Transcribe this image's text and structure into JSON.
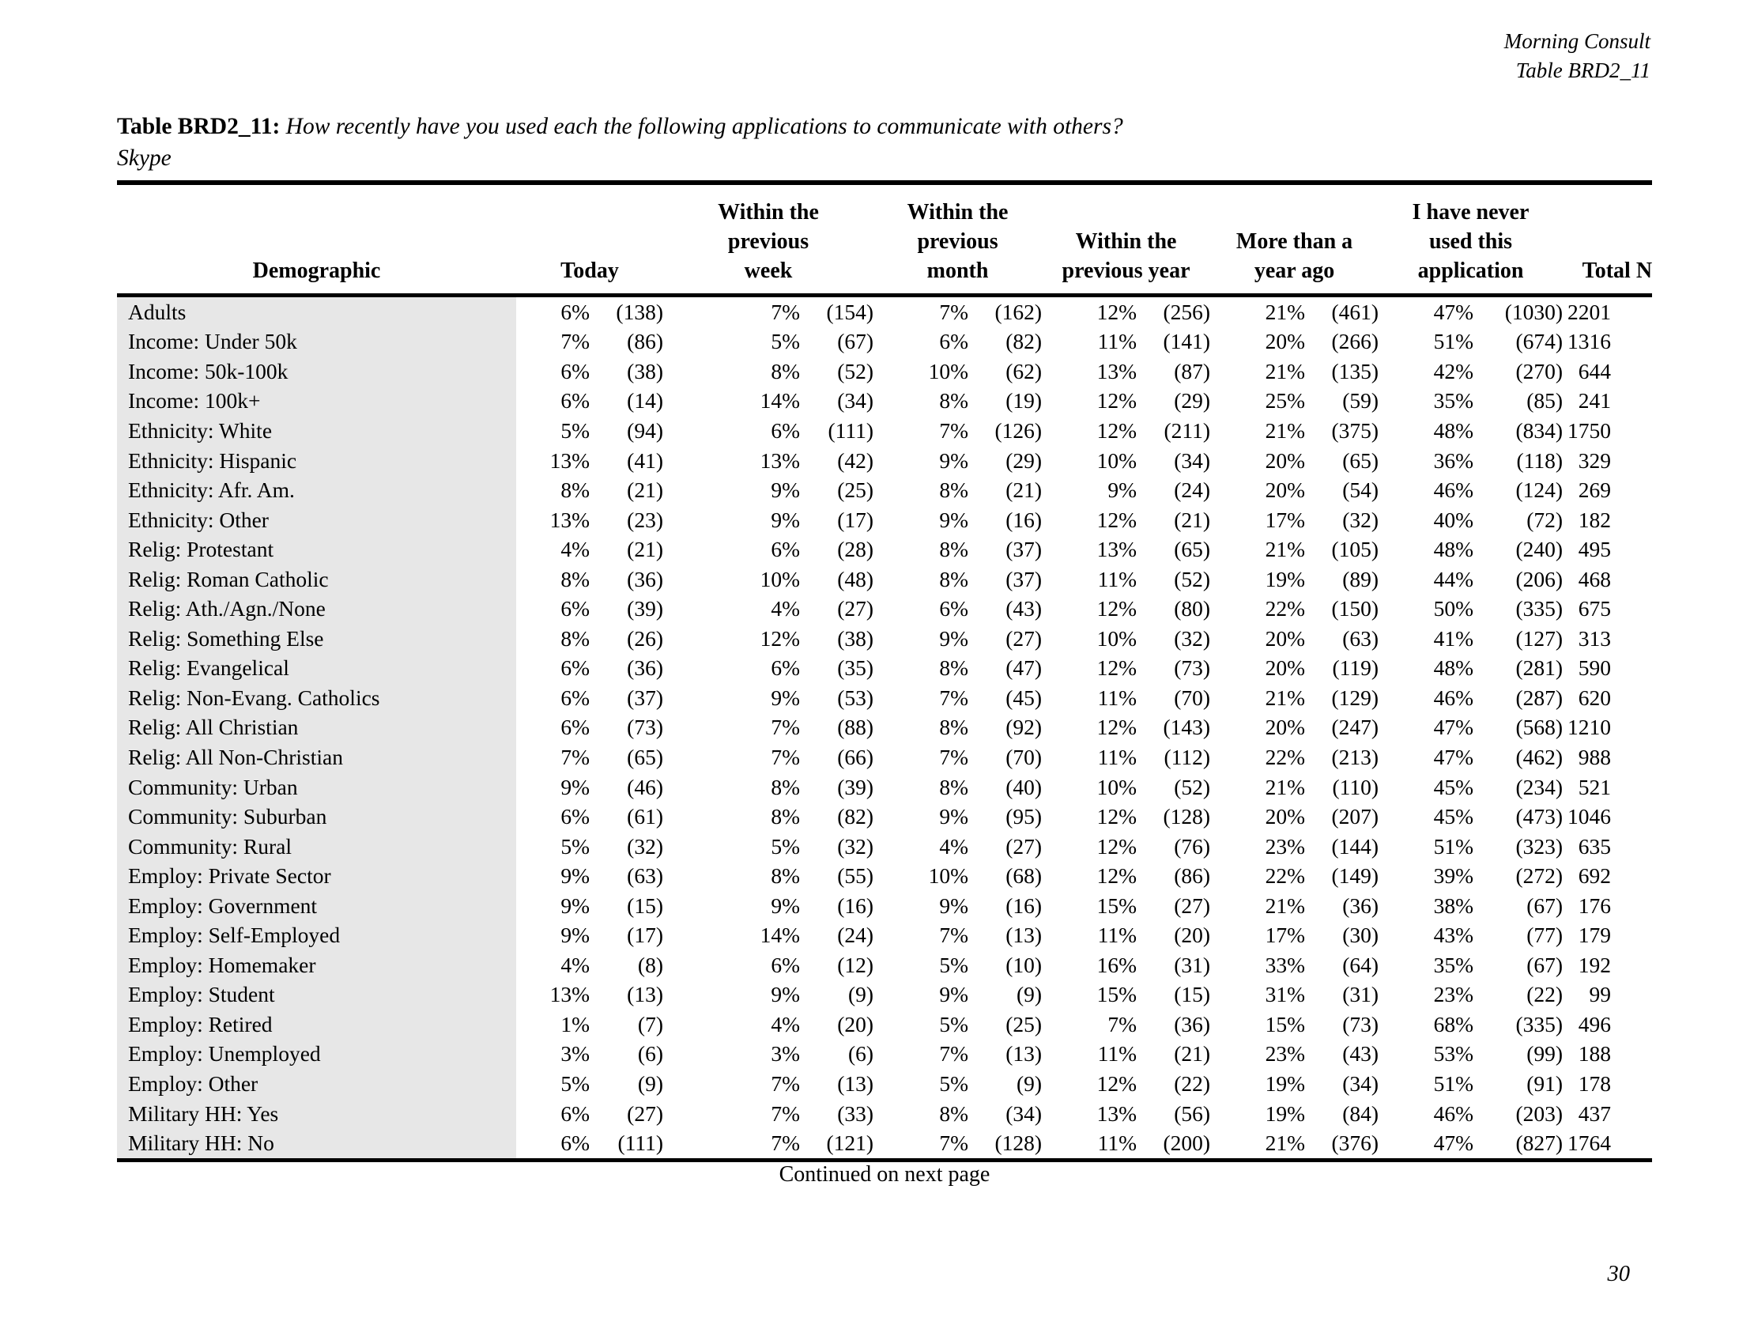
{
  "header": {
    "brand": "Morning Consult",
    "table_ref": "Table BRD2_11"
  },
  "title": {
    "label": "Table BRD2_11:",
    "question": "How recently have you used each the following applications to communicate with others?",
    "subject": "Skype"
  },
  "table": {
    "headers": {
      "demographic": "Demographic",
      "today": "Today",
      "week": "Within the\nprevious\nweek",
      "month": "Within the\nprevious\nmonth",
      "year": "Within the\nprevious year",
      "more_than_year": "More than a\nyear ago",
      "never": "I have never\nused this\napplication",
      "total": "Total N"
    },
    "rows": [
      [
        "Adults",
        "6%",
        "(138)",
        "7%",
        "(154)",
        "7%",
        "(162)",
        "12%",
        "(256)",
        "21%",
        "(461)",
        "47%",
        "(1030)",
        "2201"
      ],
      [
        "Income: Under 50k",
        "7%",
        "(86)",
        "5%",
        "(67)",
        "6%",
        "(82)",
        "11%",
        "(141)",
        "20%",
        "(266)",
        "51%",
        "(674)",
        "1316"
      ],
      [
        "Income: 50k-100k",
        "6%",
        "(38)",
        "8%",
        "(52)",
        "10%",
        "(62)",
        "13%",
        "(87)",
        "21%",
        "(135)",
        "42%",
        "(270)",
        "644"
      ],
      [
        "Income: 100k+",
        "6%",
        "(14)",
        "14%",
        "(34)",
        "8%",
        "(19)",
        "12%",
        "(29)",
        "25%",
        "(59)",
        "35%",
        "(85)",
        "241"
      ],
      [
        "Ethnicity: White",
        "5%",
        "(94)",
        "6%",
        "(111)",
        "7%",
        "(126)",
        "12%",
        "(211)",
        "21%",
        "(375)",
        "48%",
        "(834)",
        "1750"
      ],
      [
        "Ethnicity: Hispanic",
        "13%",
        "(41)",
        "13%",
        "(42)",
        "9%",
        "(29)",
        "10%",
        "(34)",
        "20%",
        "(65)",
        "36%",
        "(118)",
        "329"
      ],
      [
        "Ethnicity: Afr. Am.",
        "8%",
        "(21)",
        "9%",
        "(25)",
        "8%",
        "(21)",
        "9%",
        "(24)",
        "20%",
        "(54)",
        "46%",
        "(124)",
        "269"
      ],
      [
        "Ethnicity: Other",
        "13%",
        "(23)",
        "9%",
        "(17)",
        "9%",
        "(16)",
        "12%",
        "(21)",
        "17%",
        "(32)",
        "40%",
        "(72)",
        "182"
      ],
      [
        "Relig: Protestant",
        "4%",
        "(21)",
        "6%",
        "(28)",
        "8%",
        "(37)",
        "13%",
        "(65)",
        "21%",
        "(105)",
        "48%",
        "(240)",
        "495"
      ],
      [
        "Relig: Roman Catholic",
        "8%",
        "(36)",
        "10%",
        "(48)",
        "8%",
        "(37)",
        "11%",
        "(52)",
        "19%",
        "(89)",
        "44%",
        "(206)",
        "468"
      ],
      [
        "Relig: Ath./Agn./None",
        "6%",
        "(39)",
        "4%",
        "(27)",
        "6%",
        "(43)",
        "12%",
        "(80)",
        "22%",
        "(150)",
        "50%",
        "(335)",
        "675"
      ],
      [
        "Relig: Something Else",
        "8%",
        "(26)",
        "12%",
        "(38)",
        "9%",
        "(27)",
        "10%",
        "(32)",
        "20%",
        "(63)",
        "41%",
        "(127)",
        "313"
      ],
      [
        "Relig: Evangelical",
        "6%",
        "(36)",
        "6%",
        "(35)",
        "8%",
        "(47)",
        "12%",
        "(73)",
        "20%",
        "(119)",
        "48%",
        "(281)",
        "590"
      ],
      [
        "Relig: Non-Evang. Catholics",
        "6%",
        "(37)",
        "9%",
        "(53)",
        "7%",
        "(45)",
        "11%",
        "(70)",
        "21%",
        "(129)",
        "46%",
        "(287)",
        "620"
      ],
      [
        "Relig: All Christian",
        "6%",
        "(73)",
        "7%",
        "(88)",
        "8%",
        "(92)",
        "12%",
        "(143)",
        "20%",
        "(247)",
        "47%",
        "(568)",
        "1210"
      ],
      [
        "Relig: All Non-Christian",
        "7%",
        "(65)",
        "7%",
        "(66)",
        "7%",
        "(70)",
        "11%",
        "(112)",
        "22%",
        "(213)",
        "47%",
        "(462)",
        "988"
      ],
      [
        "Community: Urban",
        "9%",
        "(46)",
        "8%",
        "(39)",
        "8%",
        "(40)",
        "10%",
        "(52)",
        "21%",
        "(110)",
        "45%",
        "(234)",
        "521"
      ],
      [
        "Community: Suburban",
        "6%",
        "(61)",
        "8%",
        "(82)",
        "9%",
        "(95)",
        "12%",
        "(128)",
        "20%",
        "(207)",
        "45%",
        "(473)",
        "1046"
      ],
      [
        "Community: Rural",
        "5%",
        "(32)",
        "5%",
        "(32)",
        "4%",
        "(27)",
        "12%",
        "(76)",
        "23%",
        "(144)",
        "51%",
        "(323)",
        "635"
      ],
      [
        "Employ: Private Sector",
        "9%",
        "(63)",
        "8%",
        "(55)",
        "10%",
        "(68)",
        "12%",
        "(86)",
        "22%",
        "(149)",
        "39%",
        "(272)",
        "692"
      ],
      [
        "Employ: Government",
        "9%",
        "(15)",
        "9%",
        "(16)",
        "9%",
        "(16)",
        "15%",
        "(27)",
        "21%",
        "(36)",
        "38%",
        "(67)",
        "176"
      ],
      [
        "Employ: Self-Employed",
        "9%",
        "(17)",
        "14%",
        "(24)",
        "7%",
        "(13)",
        "11%",
        "(20)",
        "17%",
        "(30)",
        "43%",
        "(77)",
        "179"
      ],
      [
        "Employ: Homemaker",
        "4%",
        "(8)",
        "6%",
        "(12)",
        "5%",
        "(10)",
        "16%",
        "(31)",
        "33%",
        "(64)",
        "35%",
        "(67)",
        "192"
      ],
      [
        "Employ: Student",
        "13%",
        "(13)",
        "9%",
        "(9)",
        "9%",
        "(9)",
        "15%",
        "(15)",
        "31%",
        "(31)",
        "23%",
        "(22)",
        "99"
      ],
      [
        "Employ: Retired",
        "1%",
        "(7)",
        "4%",
        "(20)",
        "5%",
        "(25)",
        "7%",
        "(36)",
        "15%",
        "(73)",
        "68%",
        "(335)",
        "496"
      ],
      [
        "Employ: Unemployed",
        "3%",
        "(6)",
        "3%",
        "(6)",
        "7%",
        "(13)",
        "11%",
        "(21)",
        "23%",
        "(43)",
        "53%",
        "(99)",
        "188"
      ],
      [
        "Employ: Other",
        "5%",
        "(9)",
        "7%",
        "(13)",
        "5%",
        "(9)",
        "12%",
        "(22)",
        "19%",
        "(34)",
        "51%",
        "(91)",
        "178"
      ],
      [
        "Military HH: Yes",
        "6%",
        "(27)",
        "7%",
        "(33)",
        "8%",
        "(34)",
        "13%",
        "(56)",
        "19%",
        "(84)",
        "46%",
        "(203)",
        "437"
      ],
      [
        "Military HH: No",
        "6%",
        "(111)",
        "7%",
        "(121)",
        "7%",
        "(128)",
        "11%",
        "(200)",
        "21%",
        "(376)",
        "47%",
        "(827)",
        "1764"
      ]
    ]
  },
  "footer": {
    "continued": "Continued on next page",
    "page_number": "30"
  }
}
